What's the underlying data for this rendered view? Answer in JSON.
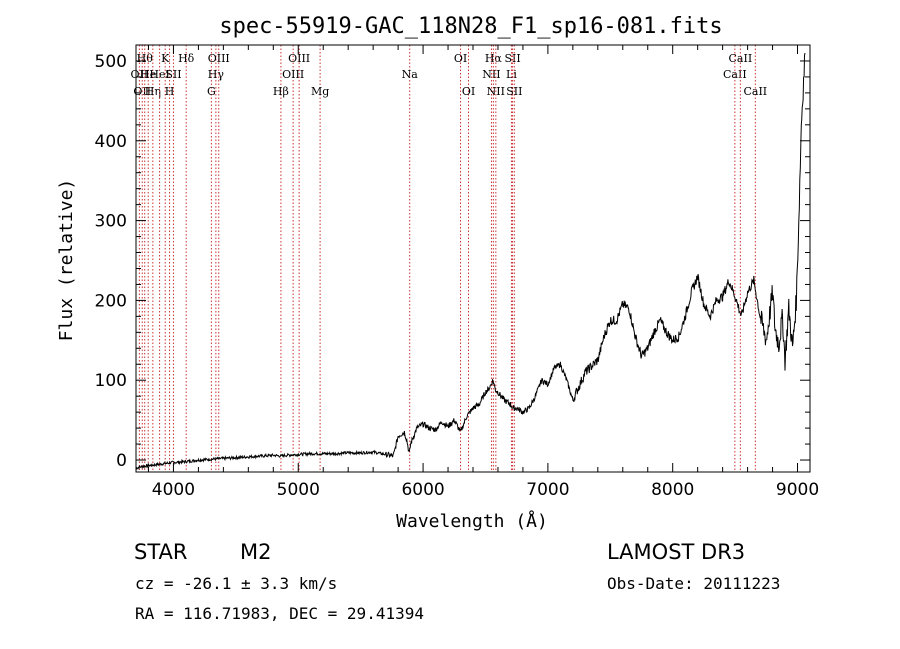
{
  "chart_data": {
    "type": "line",
    "title": "spec-55919-GAC_118N28_F1_sp16-081.fits",
    "xlabel": "Wavelength (Å)",
    "ylabel": "Flux (relative)",
    "xlim": [
      3700,
      9100
    ],
    "ylim": [
      -15,
      520
    ],
    "xticks": [
      4000,
      5000,
      6000,
      7000,
      8000,
      9000
    ],
    "yticks": [
      0,
      100,
      200,
      300,
      400,
      500
    ],
    "series": [
      {
        "name": "spectrum",
        "x": [
          3700,
          3750,
          3800,
          3850,
          3900,
          3950,
          4000,
          4100,
          4200,
          4300,
          4400,
          4500,
          4600,
          4700,
          4800,
          4860,
          4900,
          5000,
          5100,
          5200,
          5300,
          5400,
          5500,
          5600,
          5700,
          5760,
          5770,
          5800,
          5850,
          5870,
          5890,
          5900,
          5950,
          6000,
          6050,
          6100,
          6150,
          6200,
          6250,
          6300,
          6350,
          6400,
          6450,
          6500,
          6530,
          6560,
          6580,
          6600,
          6650,
          6700,
          6720,
          6750,
          6800,
          6850,
          6900,
          6950,
          7000,
          7050,
          7100,
          7150,
          7200,
          7300,
          7400,
          7450,
          7500,
          7550,
          7600,
          7650,
          7700,
          7750,
          7800,
          7850,
          7900,
          7950,
          8000,
          8050,
          8100,
          8150,
          8200,
          8250,
          8300,
          8350,
          8400,
          8450,
          8500,
          8550,
          8600,
          8650,
          8700,
          8750,
          8800,
          8820,
          8850,
          8880,
          8900,
          8930,
          8960,
          8990,
          9010,
          9030,
          9060
        ],
        "y": [
          -10,
          -8,
          -7,
          -6,
          -5,
          -4,
          -3,
          -2,
          0,
          1,
          2,
          3,
          4,
          5,
          6,
          5,
          6,
          7,
          8,
          8,
          8,
          9,
          9,
          10,
          7,
          5,
          10,
          30,
          35,
          25,
          8,
          20,
          40,
          45,
          40,
          38,
          48,
          42,
          50,
          35,
          55,
          65,
          70,
          85,
          90,
          100,
          88,
          85,
          75,
          70,
          65,
          65,
          60,
          65,
          80,
          100,
          95,
          115,
          120,
          100,
          75,
          110,
          125,
          155,
          175,
          175,
          195,
          190,
          155,
          130,
          140,
          160,
          175,
          160,
          150,
          155,
          180,
          210,
          230,
          195,
          180,
          200,
          205,
          225,
          205,
          180,
          210,
          225,
          180,
          150,
          210,
          165,
          145,
          180,
          125,
          190,
          140,
          200,
          300,
          420,
          510
        ]
      }
    ],
    "spectral_lines": [
      {
        "wl": 3727,
        "label": "OII",
        "row": 2
      },
      {
        "wl": 3750,
        "label": "OII",
        "row": 3
      },
      {
        "wl": 3770,
        "label": "Hθ",
        "row": 1
      },
      {
        "wl": 3798,
        "label": "He",
        "row": 2
      },
      {
        "wl": 3835,
        "label": "Hη",
        "row": 3
      },
      {
        "wl": 3889,
        "label": "HeI",
        "row": 2
      },
      {
        "wl": 3934,
        "label": "K",
        "row": 1
      },
      {
        "wl": 3969,
        "label": "H",
        "row": 3
      },
      {
        "wl": 4000,
        "label": "SII",
        "row": 2
      },
      {
        "wl": 4102,
        "label": "Hδ",
        "row": 1
      },
      {
        "wl": 4304,
        "label": "G",
        "row": 3
      },
      {
        "wl": 4340,
        "label": "Hγ",
        "row": 2
      },
      {
        "wl": 4363,
        "label": "OIII",
        "row": 1
      },
      {
        "wl": 4861,
        "label": "Hβ",
        "row": 3
      },
      {
        "wl": 4959,
        "label": "OIII",
        "row": 2
      },
      {
        "wl": 5007,
        "label": "OIII",
        "row": 1
      },
      {
        "wl": 5175,
        "label": "Mg",
        "row": 3
      },
      {
        "wl": 5893,
        "label": "Na",
        "row": 2
      },
      {
        "wl": 6300,
        "label": "OI",
        "row": 1
      },
      {
        "wl": 6364,
        "label": "OI",
        "row": 3
      },
      {
        "wl": 6548,
        "label": "NII",
        "row": 2
      },
      {
        "wl": 6563,
        "label": "Hα",
        "row": 1
      },
      {
        "wl": 6583,
        "label": "NII",
        "row": 3
      },
      {
        "wl": 6708,
        "label": "Li",
        "row": 2
      },
      {
        "wl": 6717,
        "label": "SII",
        "row": 1
      },
      {
        "wl": 6731,
        "label": "SII",
        "row": 3
      },
      {
        "wl": 8498,
        "label": "CaII",
        "row": 2
      },
      {
        "wl": 8542,
        "label": "CaII",
        "row": 1
      },
      {
        "wl": 8662,
        "label": "CaII",
        "row": 3
      }
    ]
  },
  "info": {
    "object_class": "STAR",
    "subclass": "M2",
    "survey": "LAMOST DR3",
    "cz": "cz = -26.1 ± 3.3 km/s",
    "obs_date": "Obs-Date: 20111223",
    "coords": "RA = 116.71983, DEC =  29.41394"
  },
  "colors": {
    "line_marker": "#cc3333",
    "spectrum": "#000000"
  }
}
